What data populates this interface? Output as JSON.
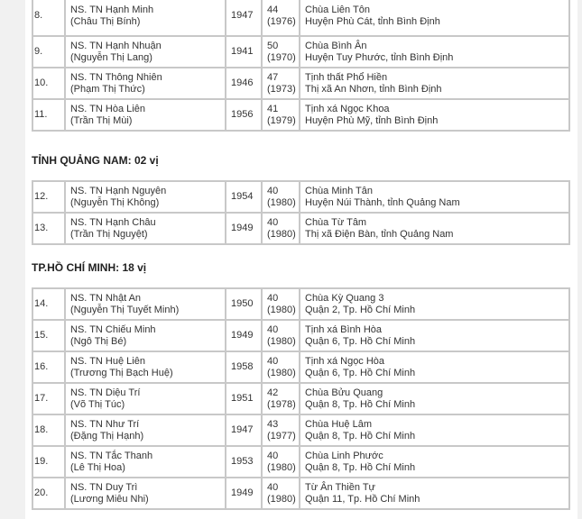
{
  "groups": [
    {
      "heading": "",
      "rows": [
        {
          "no": "8.",
          "name": "NS. TN Hạnh Minh",
          "lay_name": "(Châu Thị Bính)",
          "birth": "1947",
          "age": "44",
          "year": "(1976)",
          "temple": "Chùa Liên Tôn",
          "location": "Huyện Phù Cát, tỉnh Bình Định"
        },
        {
          "no": "9.",
          "name": "NS. TN Hạnh Nhuận",
          "lay_name": "(Nguyễn Thị Lang)",
          "birth": "1941",
          "age": "50",
          "year": "(1970)",
          "temple": "Chùa Bình Ân",
          "location": "Huyện Tuy Phước, tỉnh Bình Định"
        },
        {
          "no": "10.",
          "name": "NS. TN Thông Nhiên",
          "lay_name": "(Phạm Thị Thức)",
          "birth": "1946",
          "age": "47",
          "year": "(1973)",
          "temple": "Tịnh thất Phổ Hiền",
          "location": "Thị xã An Nhơn, tỉnh Bình Định"
        },
        {
          "no": "11.",
          "name": "NS. TN Hòa Liên",
          "lay_name": "(Trần Thị Mùi)",
          "birth": "1956",
          "age": "41",
          "year": "(1979)",
          "temple": "Tịnh xá Ngọc Khoa",
          "location": "Huyện Phù Mỹ, tỉnh Bình Định"
        }
      ]
    },
    {
      "heading": "TỈNH QUẢNG NAM: 02 vị",
      "rows": [
        {
          "no": "12.",
          "name": "NS. TN Hạnh Nguyên",
          "lay_name": "(Nguyễn Thị Không)",
          "birth": "1954",
          "age": "40",
          "year": "(1980)",
          "temple": "Chùa Minh Tân",
          "location": "Huyện Núi Thành, tỉnh Quảng Nam"
        },
        {
          "no": "13.",
          "name": "NS. TN Hạnh Châu",
          "lay_name": "(Trần Thị Nguyệt)",
          "birth": "1949",
          "age": "40",
          "year": "(1980)",
          "temple": "Chùa Từ Tâm",
          "location": "Thị xã Điện Bàn, tỉnh Quảng Nam"
        }
      ]
    },
    {
      "heading": "TP.HỒ CHÍ MINH: 18 vị",
      "rows": [
        {
          "no": "14.",
          "name": "NS. TN Nhật An",
          "lay_name": "(Nguyễn Thị Tuyết Minh)",
          "birth": "1950",
          "age": "40",
          "year": "(1980)",
          "temple": "Chùa Kỳ Quang 3",
          "location": "Quận 2, Tp. Hồ Chí Minh"
        },
        {
          "no": "15.",
          "name": "NS. TN Chiếu Minh",
          "lay_name": "(Ngô Thị Bé)",
          "birth": "1949",
          "age": "40",
          "year": "(1980)",
          "temple": "Tịnh xá Bình Hòa",
          "location": "Quận 6, Tp. Hồ Chí Minh"
        },
        {
          "no": "16.",
          "name": "NS. TN Huệ Liên",
          "lay_name": "(Trương Thị Bạch Huệ)",
          "birth": "1958",
          "age": "40",
          "year": "(1980)",
          "temple": "Tịnh xá Ngọc Hòa",
          "location": "Quận 6, Tp. Hồ Chí Minh"
        },
        {
          "no": "17.",
          "name": "NS. TN Diệu Trí",
          "lay_name": "(Võ Thị Túc)",
          "birth": "1951",
          "age": "42",
          "year": "(1978)",
          "temple": "Chùa Bửu Quang",
          "location": "Quận 8, Tp. Hồ Chí Minh"
        },
        {
          "no": "18.",
          "name": "NS. TN Như Trí",
          "lay_name": "(Đặng Thị Hạnh)",
          "birth": "1947",
          "age": "43",
          "year": "(1977)",
          "temple": "Chùa Huệ Lâm",
          "location": "Quận 8, Tp. Hồ Chí Minh"
        },
        {
          "no": "19.",
          "name": "NS. TN Tắc Thanh",
          "lay_name": "(Lê Thị Hoa)",
          "birth": "1953",
          "age": "40",
          "year": "(1980)",
          "temple": "Chùa Linh Phước",
          "location": "Quận 8, Tp. Hồ Chí Minh"
        },
        {
          "no": "20.",
          "name": "NS. TN Duy Trì",
          "lay_name": "(Lương Miêu Nhi)",
          "birth": "1949",
          "age": "40",
          "year": "(1980)",
          "temple": "Từ Ân Thiền Tự",
          "location": "Quận 11, Tp. Hồ Chí Minh"
        }
      ]
    }
  ]
}
